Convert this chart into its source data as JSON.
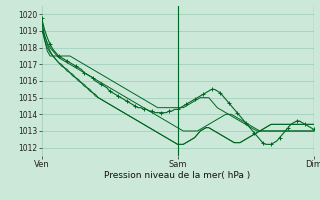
{
  "title": "Pression niveau de la mer( hPa )",
  "bg_color": "#cce8d8",
  "grid_color": "#99ccb8",
  "line_color": "#006622",
  "ylim": [
    1011.5,
    1020.5
  ],
  "yticks": [
    1012,
    1013,
    1014,
    1015,
    1016,
    1017,
    1018,
    1019,
    1020
  ],
  "xtick_labels": [
    "Ven",
    "Sam",
    "Dim"
  ],
  "xtick_positions": [
    0,
    48,
    96
  ],
  "vline_positions": [
    48,
    96
  ],
  "total_points": 97,
  "series": [
    {
      "data": [
        1019.8,
        1019.1,
        1018.6,
        1018.2,
        1017.9,
        1017.7,
        1017.5,
        1017.4,
        1017.3,
        1017.2,
        1017.1,
        1017.0,
        1016.9,
        1016.8,
        1016.7,
        1016.5,
        1016.4,
        1016.3,
        1016.2,
        1016.0,
        1015.9,
        1015.8,
        1015.7,
        1015.6,
        1015.4,
        1015.3,
        1015.2,
        1015.1,
        1015.0,
        1014.9,
        1014.8,
        1014.7,
        1014.6,
        1014.5,
        1014.4,
        1014.4,
        1014.3,
        1014.3,
        1014.2,
        1014.2,
        1014.1,
        1014.1,
        1014.1,
        1014.1,
        1014.1,
        1014.2,
        1014.2,
        1014.3,
        1014.3,
        1014.4,
        1014.5,
        1014.6,
        1014.7,
        1014.8,
        1014.9,
        1015.0,
        1015.1,
        1015.2,
        1015.3,
        1015.4,
        1015.5,
        1015.5,
        1015.4,
        1015.3,
        1015.1,
        1014.9,
        1014.7,
        1014.5,
        1014.3,
        1014.1,
        1013.9,
        1013.7,
        1013.5,
        1013.3,
        1013.1,
        1012.9,
        1012.7,
        1012.5,
        1012.3,
        1012.2,
        1012.2,
        1012.2,
        1012.3,
        1012.4,
        1012.6,
        1012.8,
        1013.0,
        1013.2,
        1013.4,
        1013.5,
        1013.6,
        1013.6,
        1013.5,
        1013.4,
        1013.3,
        1013.2,
        1013.1
      ],
      "marker": true
    },
    {
      "data": [
        1019.5,
        1018.8,
        1018.2,
        1017.8,
        1017.5,
        1017.3,
        1017.1,
        1016.9,
        1016.8,
        1016.6,
        1016.5,
        1016.3,
        1016.2,
        1016.0,
        1015.9,
        1015.7,
        1015.6,
        1015.4,
        1015.3,
        1015.1,
        1015.0,
        1014.9,
        1014.8,
        1014.7,
        1014.6,
        1014.5,
        1014.4,
        1014.3,
        1014.2,
        1014.1,
        1014.0,
        1013.9,
        1013.8,
        1013.7,
        1013.6,
        1013.5,
        1013.4,
        1013.3,
        1013.2,
        1013.1,
        1013.0,
        1012.9,
        1012.8,
        1012.7,
        1012.6,
        1012.5,
        1012.4,
        1012.3,
        1012.2,
        1012.2,
        1012.2,
        1012.3,
        1012.4,
        1012.5,
        1012.6,
        1012.8,
        1013.0,
        1013.1,
        1013.2,
        1013.2,
        1013.1,
        1013.0,
        1012.9,
        1012.8,
        1012.7,
        1012.6,
        1012.5,
        1012.4,
        1012.3,
        1012.3,
        1012.3,
        1012.4,
        1012.5,
        1012.6,
        1012.7,
        1012.8,
        1012.9,
        1013.0,
        1013.1,
        1013.2,
        1013.3,
        1013.4,
        1013.4,
        1013.4,
        1013.4,
        1013.4,
        1013.4,
        1013.4,
        1013.4,
        1013.4,
        1013.4,
        1013.4,
        1013.4,
        1013.4,
        1013.4,
        1013.4,
        1013.4
      ],
      "marker": false
    },
    {
      "data": [
        1019.2,
        1018.5,
        1018.0,
        1017.7,
        1017.5,
        1017.3,
        1017.1,
        1017.0,
        1016.8,
        1016.7,
        1016.5,
        1016.4,
        1016.2,
        1016.1,
        1015.9,
        1015.8,
        1015.6,
        1015.5,
        1015.3,
        1015.2,
        1015.0,
        1014.9,
        1014.8,
        1014.7,
        1014.6,
        1014.5,
        1014.4,
        1014.3,
        1014.2,
        1014.1,
        1014.0,
        1013.9,
        1013.8,
        1013.7,
        1013.6,
        1013.5,
        1013.4,
        1013.3,
        1013.2,
        1013.1,
        1013.0,
        1012.9,
        1012.8,
        1012.7,
        1012.6,
        1012.5,
        1012.4,
        1012.3,
        1012.2,
        1012.2,
        1012.2,
        1012.3,
        1012.4,
        1012.5,
        1012.6,
        1012.8,
        1013.0,
        1013.1,
        1013.2,
        1013.2,
        1013.1,
        1013.0,
        1012.9,
        1012.8,
        1012.7,
        1012.6,
        1012.5,
        1012.4,
        1012.3,
        1012.3,
        1012.3,
        1012.4,
        1012.5,
        1012.6,
        1012.7,
        1012.8,
        1012.9,
        1013.0,
        1013.1,
        1013.2,
        1013.3,
        1013.4,
        1013.4,
        1013.4,
        1013.4,
        1013.4,
        1013.4,
        1013.4,
        1013.4,
        1013.4,
        1013.4,
        1013.4,
        1013.4,
        1013.4,
        1013.4,
        1013.4,
        1013.4
      ],
      "marker": false
    },
    {
      "data": [
        1019.0,
        1018.7,
        1018.3,
        1018.0,
        1017.8,
        1017.6,
        1017.4,
        1017.3,
        1017.2,
        1017.1,
        1017.0,
        1016.9,
        1016.8,
        1016.7,
        1016.6,
        1016.5,
        1016.4,
        1016.3,
        1016.2,
        1016.1,
        1016.0,
        1015.9,
        1015.8,
        1015.7,
        1015.6,
        1015.5,
        1015.4,
        1015.3,
        1015.2,
        1015.1,
        1015.0,
        1014.9,
        1014.8,
        1014.7,
        1014.6,
        1014.5,
        1014.4,
        1014.3,
        1014.2,
        1014.1,
        1014.0,
        1013.9,
        1013.8,
        1013.7,
        1013.6,
        1013.5,
        1013.4,
        1013.3,
        1013.2,
        1013.1,
        1013.0,
        1013.0,
        1013.0,
        1013.0,
        1013.0,
        1013.0,
        1013.1,
        1013.2,
        1013.3,
        1013.4,
        1013.5,
        1013.6,
        1013.7,
        1013.8,
        1013.9,
        1014.0,
        1014.0,
        1014.0,
        1013.9,
        1013.8,
        1013.7,
        1013.6,
        1013.5,
        1013.4,
        1013.3,
        1013.2,
        1013.1,
        1013.0,
        1013.0,
        1013.0,
        1013.0,
        1013.0,
        1013.0,
        1013.0,
        1013.0,
        1013.0,
        1013.0,
        1013.0,
        1013.0,
        1013.0,
        1013.0,
        1013.0,
        1013.0,
        1013.0,
        1013.0,
        1013.0,
        1013.0
      ],
      "marker": false
    },
    {
      "data": [
        1019.8,
        1018.5,
        1017.8,
        1017.5,
        1017.5,
        1017.5,
        1017.5,
        1017.5,
        1017.5,
        1017.5,
        1017.5,
        1017.4,
        1017.3,
        1017.2,
        1017.1,
        1017.0,
        1016.9,
        1016.8,
        1016.7,
        1016.6,
        1016.5,
        1016.4,
        1016.3,
        1016.2,
        1016.1,
        1016.0,
        1015.9,
        1015.8,
        1015.7,
        1015.6,
        1015.5,
        1015.4,
        1015.3,
        1015.2,
        1015.1,
        1015.0,
        1014.9,
        1014.8,
        1014.7,
        1014.6,
        1014.5,
        1014.4,
        1014.4,
        1014.4,
        1014.4,
        1014.4,
        1014.4,
        1014.4,
        1014.4,
        1014.4,
        1014.4,
        1014.5,
        1014.6,
        1014.7,
        1014.8,
        1014.9,
        1015.0,
        1015.0,
        1015.0,
        1015.0,
        1014.8,
        1014.6,
        1014.4,
        1014.3,
        1014.2,
        1014.1,
        1014.0,
        1013.9,
        1013.8,
        1013.7,
        1013.6,
        1013.5,
        1013.4,
        1013.3,
        1013.2,
        1013.1,
        1013.0,
        1013.0,
        1013.0,
        1013.0,
        1013.0,
        1013.0,
        1013.0,
        1013.0,
        1013.0,
        1013.0,
        1013.0,
        1013.0,
        1013.0,
        1013.0,
        1013.0,
        1013.0,
        1013.0,
        1013.0,
        1013.0,
        1013.0,
        1013.0
      ],
      "marker": false
    }
  ]
}
